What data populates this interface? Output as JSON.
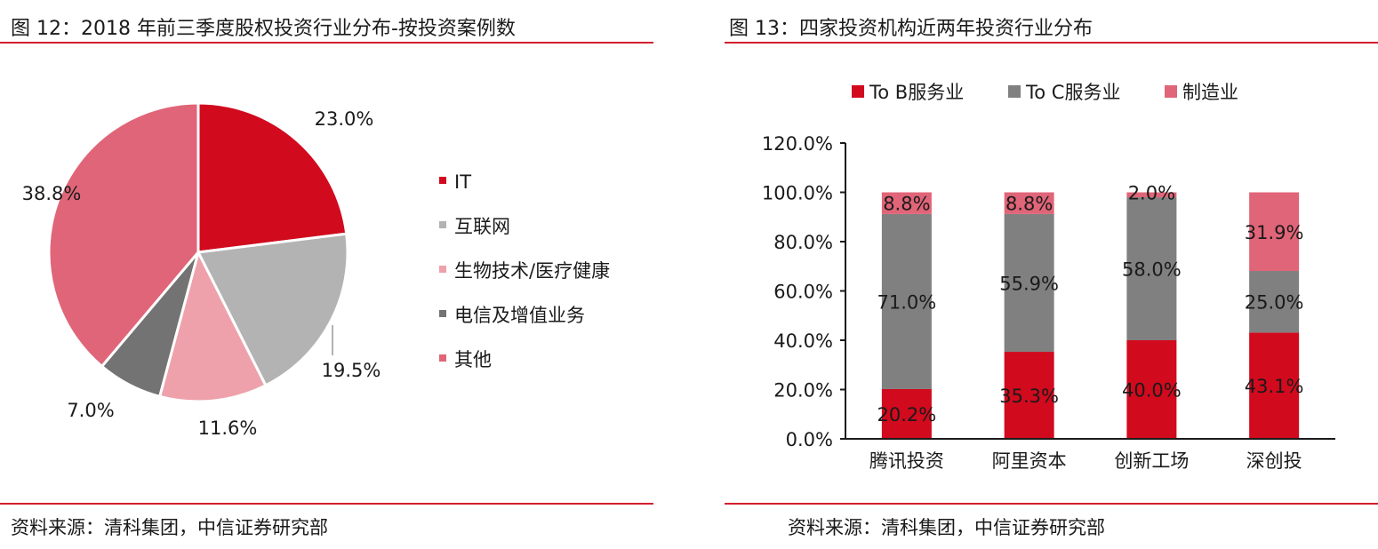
{
  "colors": {
    "accent_rule": "#d2202e",
    "it": "#d10a1e",
    "internet": "#b3b3b3",
    "biotech": "#eea1ab",
    "telecom": "#737373",
    "other": "#e06578",
    "to_b": "#d10a1e",
    "to_c": "#808080",
    "manufacturing": "#e06578"
  },
  "left": {
    "title": "图 12：2018 年前三季度股权投资行业分布-按投资案例数",
    "source": "资料来源：清科集团，中信证券研究部"
  },
  "right": {
    "title": "图 13：四家投资机构近两年投资行业分布",
    "source": "资料来源：清科集团，中信证券研究部"
  },
  "chart_data": [
    {
      "type": "pie",
      "title": "图 12：2018 年前三季度股权投资行业分布-按投资案例数",
      "labels": [
        "IT",
        "互联网",
        "生物技术/医疗健康",
        "电信及增值业务",
        "其他"
      ],
      "values": [
        23.0,
        19.5,
        11.6,
        7.0,
        38.8
      ],
      "value_labels": [
        "23.0%",
        "19.5%",
        "11.6%",
        "7.0%",
        "38.8%"
      ],
      "colors": [
        "#d10a1e",
        "#b3b3b3",
        "#eea1ab",
        "#737373",
        "#e06578"
      ],
      "legend_position": "right",
      "start": "top",
      "direction": "clockwise"
    },
    {
      "type": "bar",
      "stacked": true,
      "title": "图 13：四家投资机构近两年投资行业分布",
      "categories": [
        "腾讯投资",
        "阿里资本",
        "创新工场",
        "深创投"
      ],
      "series": [
        {
          "name": "To B服务业",
          "values": [
            20.2,
            35.3,
            40.0,
            43.1
          ],
          "labels": [
            "20.2%",
            "35.3%",
            "40.0%",
            "43.1%"
          ],
          "color": "#d10a1e"
        },
        {
          "name": "To C服务业",
          "values": [
            71.0,
            55.9,
            58.0,
            25.0
          ],
          "labels": [
            "71.0%",
            "55.9%",
            "58.0%",
            "25.0%"
          ],
          "color": "#808080"
        },
        {
          "name": "制造业",
          "values": [
            8.8,
            8.8,
            2.0,
            31.9
          ],
          "labels": [
            "8.8%",
            "8.8%",
            "2.0%",
            "31.9%"
          ],
          "color": "#e06578"
        }
      ],
      "ylim": [
        0,
        120
      ],
      "yticks": [
        "0.0%",
        "20.0%",
        "40.0%",
        "60.0%",
        "80.0%",
        "100.0%",
        "120.0%"
      ],
      "legend_position": "top",
      "grid": false
    }
  ]
}
